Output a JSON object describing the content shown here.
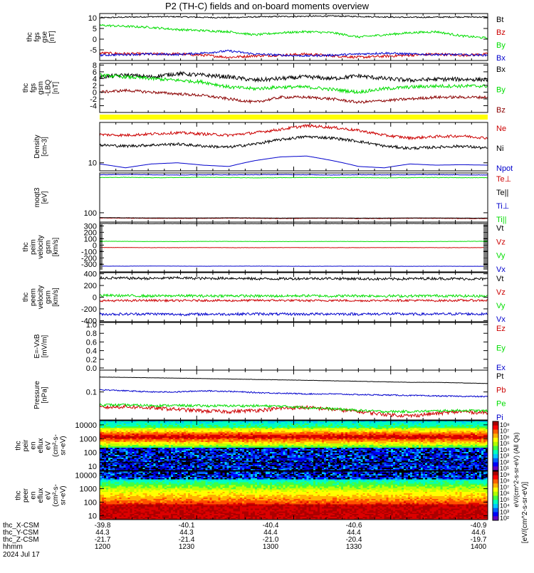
{
  "title": "P2 (TH-C) fields and on-board moments overview",
  "colors": {
    "black": "#000000",
    "red": "#cc0000",
    "green": "#00dd00",
    "blue": "#0000cc",
    "yellow": "#ffff00",
    "darkred": "#8b0000"
  },
  "chart_data": [
    {
      "type": "line",
      "panel": "fgs_gse",
      "ylabel": [
        "thc",
        "fgs",
        "gse",
        "[nT]"
      ],
      "ylim": [
        -10,
        12
      ],
      "yticks": [
        {
          "v": 10,
          "label": "10"
        },
        {
          "v": 5,
          "label": "5"
        },
        {
          "v": 0,
          "label": "0"
        },
        {
          "v": -5,
          "label": "-5"
        }
      ],
      "series": [
        {
          "name": "Bt",
          "color": "#000000",
          "base": [
            10,
            10.3,
            10.5,
            10.5,
            10.2,
            10.1,
            10.4,
            10.6,
            10.7,
            10.8,
            10.6,
            10.4,
            10.2,
            10.3,
            10.4,
            10.3
          ],
          "noise": 0.3
        },
        {
          "name": "Bz",
          "color": "#cc0000",
          "base": [
            -6.5,
            -6.8,
            -7,
            -6.9,
            -7.5,
            -8.5,
            -7.8,
            -7.5,
            -7,
            -7.8,
            -8.5,
            -8,
            -7.5,
            -7,
            -7.5,
            -7
          ],
          "noise": 0.6
        },
        {
          "name": "By",
          "color": "#00dd00",
          "base": [
            6.5,
            6,
            5.5,
            4.5,
            4,
            3.5,
            2,
            3,
            3.5,
            3,
            1,
            2,
            3,
            3.5,
            1.5,
            0.5
          ],
          "noise": 0.5
        },
        {
          "name": "Bx",
          "color": "#0000cc",
          "base": [
            -7.5,
            -7.2,
            -7,
            -7.2,
            -6.5,
            -5.5,
            -7,
            -7.5,
            -7.8,
            -7.5,
            -7,
            -6.5,
            -7,
            -7.2,
            -7.3,
            -7.5
          ],
          "noise": 0.5
        }
      ]
    },
    {
      "type": "line",
      "panel": "fgs_gsm",
      "ylabel": [
        "thc",
        "fgs",
        "gsm",
        "-LBQ",
        "[nT]"
      ],
      "ylim": [
        -6,
        8.5
      ],
      "yticks": [
        {
          "v": 8,
          "label": "8"
        },
        {
          "v": 6,
          "label": "6"
        },
        {
          "v": 4,
          "label": "4"
        },
        {
          "v": 2,
          "label": "2"
        },
        {
          "v": 0,
          "label": "0"
        },
        {
          "v": -2,
          "label": "-2"
        },
        {
          "v": -4,
          "label": "-4"
        }
      ],
      "series": [
        {
          "name": "Bx",
          "color": "#000000",
          "base": [
            4.5,
            5,
            4.5,
            5.5,
            5,
            4.5,
            3.5,
            4,
            4.5,
            4,
            4.8,
            4,
            3.5,
            3.8,
            3.8,
            3.7
          ],
          "noise": 0.6
        },
        {
          "name": "By",
          "color": "#00dd00",
          "base": [
            5,
            4.5,
            4,
            3.5,
            3,
            1.5,
            1,
            1.5,
            1.5,
            0.8,
            0,
            1,
            1.5,
            1.8,
            1.8,
            1.8
          ],
          "noise": 0.5
        },
        {
          "name": "Bz",
          "color": "#8b0000",
          "base": [
            0,
            0.5,
            0,
            -0.5,
            -1,
            -2,
            -3,
            -1.5,
            -1.5,
            -2,
            -3,
            -2.5,
            -2,
            -1.5,
            -1.5,
            -1.5
          ],
          "noise": 0.4
        }
      ]
    },
    {
      "type": "line",
      "panel": "density",
      "logscale": true,
      "ylabel": [
        "Density",
        "[cm-3]"
      ],
      "ylim": [
        7,
        60
      ],
      "yticks": [
        {
          "v": 10,
          "label": "10"
        }
      ],
      "series": [
        {
          "name": "Ne",
          "color": "#cc0000",
          "base": [
            35,
            34,
            36,
            38,
            36,
            34,
            38,
            44,
            52,
            48,
            42,
            34,
            30,
            32,
            33,
            30
          ],
          "noise": 0.06
        },
        {
          "name": "Ni",
          "color": "#000000",
          "base": [
            22,
            21,
            22,
            23,
            21,
            20,
            23,
            28,
            32,
            30,
            26,
            21,
            19,
            20,
            21,
            19
          ],
          "noise": 0.06
        },
        {
          "name": "Npot",
          "color": "#0000cc",
          "base": [
            9.5,
            8,
            9.5,
            10,
            9,
            8.5,
            11,
            13,
            13.5,
            11,
            8.5,
            8,
            9.5,
            9,
            9.2,
            9
          ],
          "noise": 0
        }
      ]
    },
    {
      "type": "line",
      "panel": "temperature",
      "logscale": true,
      "ylabel": [
        "moqt3",
        "[eV]"
      ],
      "ylim": [
        40,
        5000
      ],
      "yticks": [
        {
          "v": 100,
          "label": "100"
        }
      ],
      "series": [
        {
          "name": "Te⊥",
          "color": "#cc0000",
          "base": [
            60,
            59,
            58,
            58,
            58,
            59,
            58,
            57,
            58,
            58,
            57,
            57,
            58,
            58,
            57,
            57
          ],
          "noise": 0.02
        },
        {
          "name": "Te||",
          "color": "#000000",
          "base": [
            62,
            61,
            60,
            60,
            60,
            61,
            60,
            59,
            60,
            60,
            59,
            59,
            60,
            60,
            59,
            59
          ],
          "noise": 0.01
        },
        {
          "name": "Ti⊥",
          "color": "#0000cc",
          "base": [
            4200,
            4300,
            4200,
            4100,
            4200,
            4150,
            4200,
            4250,
            4200,
            4100,
            4200,
            4150,
            4200,
            4200,
            4150,
            4100
          ],
          "noise": 0.02
        },
        {
          "name": "Ti||",
          "color": "#00dd00",
          "base": [
            3200,
            3250,
            3150,
            3200,
            3250,
            3200,
            3100,
            3150,
            3200,
            3150,
            3200,
            3100,
            3150,
            3200,
            3150,
            3150
          ],
          "noise": 0.02
        }
      ]
    },
    {
      "type": "line",
      "panel": "peim_velocity",
      "ylabel": [
        "thc",
        "peim",
        "velocity",
        "gsm",
        "[km/s]"
      ],
      "ylim": [
        -420,
        360
      ],
      "yticks": [
        {
          "v": 300,
          "label": "300"
        },
        {
          "v": 200,
          "label": "200"
        },
        {
          "v": 100,
          "label": "100"
        },
        {
          "v": 0,
          "label": "0"
        },
        {
          "v": -100,
          "label": "-100"
        },
        {
          "v": -200,
          "label": "-200"
        },
        {
          "v": -300,
          "label": "-300"
        }
      ],
      "series": [
        {
          "name": "Vt",
          "color": "#000000",
          "base": [
            338,
            338,
            336,
            337,
            336,
            336,
            336,
            337,
            337,
            337,
            337,
            337,
            338,
            337,
            338,
            338
          ],
          "noise": 1.5
        },
        {
          "name": "Vz",
          "color": "#cc0000",
          "base": [
            -38,
            -38,
            -40,
            -40,
            -39,
            -40,
            -40,
            -39,
            -39,
            -40,
            -40,
            -39,
            -39,
            -40,
            -40,
            -40
          ],
          "noise": 2
        },
        {
          "name": "Vy",
          "color": "#00dd00",
          "base": [
            60,
            58,
            56,
            55,
            58,
            58,
            56,
            55,
            56,
            57,
            56,
            55,
            54,
            56,
            58,
            60
          ],
          "noise": 2
        },
        {
          "name": "Vx",
          "color": "#0000cc",
          "base": [
            -330,
            -330,
            -328,
            -330,
            -331,
            -330,
            -330,
            -331,
            -332,
            -331,
            -331,
            -331,
            -332,
            -331,
            -332,
            -332
          ],
          "noise": 1.5
        }
      ]
    },
    {
      "type": "line",
      "panel": "peem_velocity",
      "ylabel": [
        "thc",
        "peem",
        "velocity",
        "gsm",
        "[km/s]"
      ],
      "ylim": [
        -420,
        420
      ],
      "yticks": [
        {
          "v": 400,
          "label": "400"
        },
        {
          "v": 200,
          "label": "200"
        },
        {
          "v": 0,
          "label": "0"
        },
        {
          "v": -200,
          "label": "-200"
        },
        {
          "v": -400,
          "label": "-400"
        }
      ],
      "series": [
        {
          "name": "Vt",
          "color": "#000000",
          "base": [
            330,
            325,
            320,
            330,
            320,
            325,
            315,
            315,
            320,
            320,
            315,
            310,
            315,
            320,
            315,
            310
          ],
          "noise": 22
        },
        {
          "name": "Vz",
          "color": "#cc0000",
          "base": [
            -60,
            -60,
            -55,
            -60,
            -55,
            -60,
            -55,
            -55,
            -60,
            -55,
            -60,
            -55,
            -55,
            -60,
            -55,
            -55
          ],
          "noise": 18
        },
        {
          "name": "Vy",
          "color": "#00dd00",
          "base": [
            30,
            25,
            20,
            25,
            20,
            25,
            20,
            20,
            25,
            20,
            25,
            20,
            20,
            25,
            20,
            20
          ],
          "noise": 22
        },
        {
          "name": "Vx",
          "color": "#0000cc",
          "base": [
            -290,
            -290,
            -285,
            -295,
            -290,
            -290,
            -285,
            -290,
            -290,
            -285,
            -290,
            -285,
            -290,
            -290,
            -285,
            -290
          ],
          "noise": 22
        }
      ]
    },
    {
      "type": "line",
      "panel": "efield",
      "ylabel": [
        "E=-VxB",
        "[mV/m]"
      ],
      "ylim": [
        -0.05,
        1.05
      ],
      "yticks": [
        {
          "v": 1.0,
          "label": "1.0"
        },
        {
          "v": 0.8,
          "label": "0.8"
        },
        {
          "v": 0.6,
          "label": "0.6"
        },
        {
          "v": 0.4,
          "label": "0.4"
        },
        {
          "v": 0.2,
          "label": "0.2"
        },
        {
          "v": 0.0,
          "label": "0.0"
        }
      ],
      "series": [
        {
          "name": "Ez",
          "color": "#cc0000"
        },
        {
          "name": "Ey",
          "color": "#00dd00"
        },
        {
          "name": "Ex",
          "color": "#0000cc"
        }
      ]
    },
    {
      "type": "line",
      "panel": "pressure",
      "logscale": true,
      "ylabel": [
        "Pressure",
        "[nPa]"
      ],
      "ylim": [
        0.01,
        0.6
      ],
      "yticks": [
        {
          "v": 0.1,
          "label": "0.1"
        }
      ],
      "series": [
        {
          "name": "Pt",
          "color": "#000000",
          "base": [
            0.34,
            0.33,
            0.32,
            0.31,
            0.3,
            0.29,
            0.28,
            0.27,
            0.26,
            0.25,
            0.24,
            0.23,
            0.22,
            0.22,
            0.21,
            0.2
          ],
          "noise": 0.01
        },
        {
          "name": "Pb",
          "color": "#cc0000",
          "base": [
            0.028,
            0.03,
            0.027,
            0.024,
            0.021,
            0.02,
            0.022,
            0.026,
            0.028,
            0.024,
            0.02,
            0.016,
            0.014,
            0.017,
            0.02,
            0.018
          ],
          "noise": 0.15
        },
        {
          "name": "Pe",
          "color": "#00dd00",
          "base": [
            0.035,
            0.034,
            0.033,
            0.033,
            0.032,
            0.032,
            0.032,
            0.031,
            0.028,
            0.025,
            0.022,
            0.02,
            0.02,
            0.021,
            0.022,
            0.021
          ],
          "noise": 0.1
        },
        {
          "name": "Pi",
          "color": "#0000cc",
          "base": [
            0.12,
            0.11,
            0.1,
            0.1,
            0.11,
            0.105,
            0.095,
            0.09,
            0.085,
            0.085,
            0.08,
            0.078,
            0.075,
            0.072,
            0.07,
            0.068
          ],
          "noise": 0.05
        }
      ]
    },
    {
      "type": "heatmap",
      "panel": "peir_spectrogram",
      "ylabel": [
        "thc",
        "peir",
        "en",
        "eflux",
        "eV",
        "(cm²-s-",
        "sr-eV)"
      ],
      "ylim": [
        5,
        20000
      ],
      "logscale": true,
      "yticks": [
        {
          "v": 10000,
          "label": "10000"
        },
        {
          "v": 1000,
          "label": "1000"
        },
        {
          "v": 100,
          "label": "100"
        },
        {
          "v": 10,
          "label": "10"
        }
      ]
    },
    {
      "type": "heatmap",
      "panel": "peer_spectrogram",
      "ylabel": [
        "thc",
        "peer",
        "en",
        "eflux",
        "eV",
        "(cm²-s-",
        "sr-eV)"
      ],
      "ylim": [
        5,
        20000
      ],
      "logscale": true,
      "yticks": [
        {
          "v": 10000,
          "label": "10000"
        },
        {
          "v": 1000,
          "label": "1000"
        },
        {
          "v": 100,
          "label": "100"
        },
        {
          "v": 10,
          "label": "10"
        }
      ]
    }
  ],
  "colorbar": {
    "top_ticks": [
      "10⁸",
      "10⁷",
      "10⁶",
      "10⁵",
      "10⁴",
      "10³",
      "10²",
      "10¹"
    ],
    "bottom_ticks": [
      "10⁹",
      "10⁸",
      "10⁷",
      "10⁶",
      "10⁵",
      "10⁴",
      "10³",
      "10²"
    ],
    "label": "eV/(cm^2-s-sr-eV) (All Qs)",
    "label2": "[eV/(cm^2-s-sr-eV)]"
  },
  "xaxis": {
    "rows": [
      {
        "label": "thc_X-CSM",
        "values": [
          "-39.8",
          "-40.1",
          "-40.4",
          "-40.6",
          "-40.9"
        ]
      },
      {
        "label": "thc_Y-CSM",
        "values": [
          "44.3",
          "44.3",
          "44.4",
          "44.4",
          "44.6"
        ]
      },
      {
        "label": "thc_Z-CSM",
        "values": [
          "-21.7",
          "-21.4",
          "-21.0",
          "-20.4",
          "-19.7"
        ]
      },
      {
        "label": "hhmm",
        "values": [
          "1200",
          "1230",
          "1300",
          "1330",
          "1400"
        ]
      }
    ],
    "date": "2024 Jul 17"
  }
}
